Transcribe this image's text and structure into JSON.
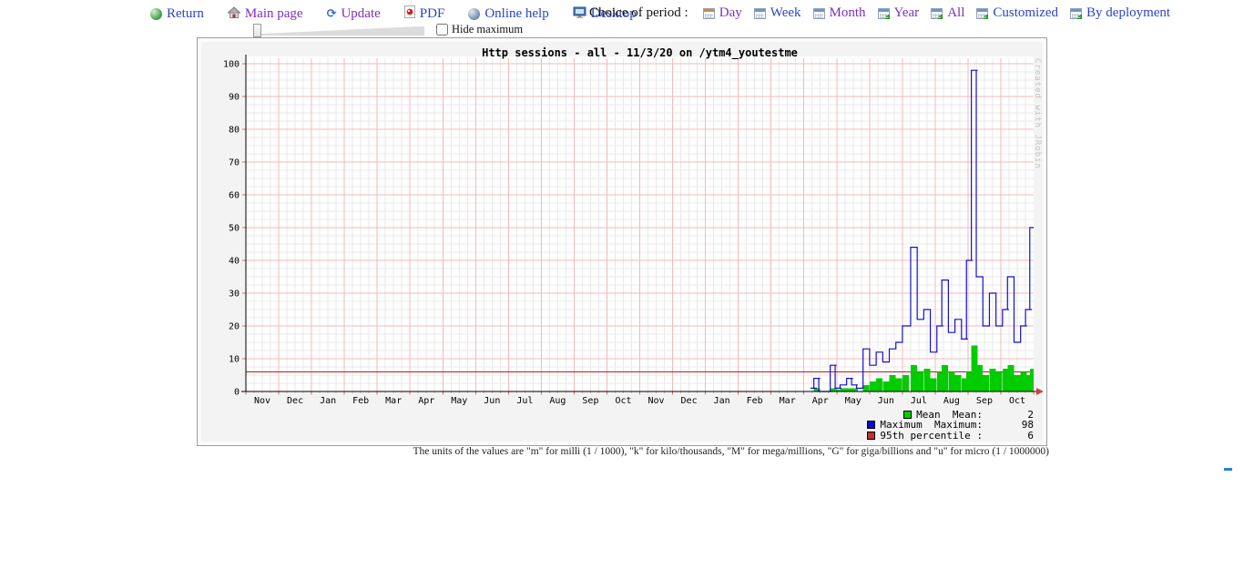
{
  "colors": {
    "link_blue": "#2a44c8",
    "link_visited_purple": "#7d2fc0",
    "grid_major": "#f3b9b9",
    "grid_minor": "#e9e9e9",
    "percentile_line": "#aa2222",
    "axis": "#000000",
    "axis_arrow": "#d04040",
    "mean_green": "#00cc00",
    "maximum_blue": "#1212cc"
  },
  "nav": {
    "items": [
      {
        "label": "Return",
        "icon": "return-icon",
        "visited": false
      },
      {
        "label": "Main page",
        "icon": "home-icon",
        "visited": true
      },
      {
        "label": "Update",
        "icon": "refresh-icon",
        "visited": true
      },
      {
        "label": "PDF",
        "icon": "pdf-icon",
        "visited": false
      },
      {
        "label": "Online help",
        "icon": "help-icon",
        "visited": false
      },
      {
        "label": "Desktop",
        "icon": "desktop-icon",
        "visited": false
      }
    ]
  },
  "period": {
    "label": "Choice of period :",
    "items": [
      {
        "label": "Day",
        "visited": true
      },
      {
        "label": "Week",
        "visited": false
      },
      {
        "label": "Month",
        "visited": true
      },
      {
        "label": "Year",
        "visited": true
      },
      {
        "label": "All",
        "visited": true
      },
      {
        "label": "Customized",
        "visited": false
      },
      {
        "label": "By deployment",
        "visited": false
      }
    ]
  },
  "controls": {
    "hide_maximum_label": "Hide maximum",
    "hide_maximum_checked": false
  },
  "graph": {
    "title": "Http sessions - all - 11/3/20 on /ytm4_youtestme",
    "watermark": "Created with JRobin",
    "legend": [
      {
        "label": "Mean  Mean:",
        "value": "2",
        "color": "#00cc00"
      },
      {
        "label": "Maximum  Maximum:",
        "value": "98",
        "color": "#0a0ad0"
      },
      {
        "label": "95th percentile :",
        "value": "6",
        "color": "#c03030"
      }
    ]
  },
  "footnote": "The units of the values are \"m\" for milli (1 / 1000), \"k\" for kilo/thousands, \"M\" for mega/millions, \"G\" for giga/billions and \"u\" for micro (1 / 1000000)",
  "chart_data": {
    "type": "line",
    "title": "Http sessions - all - 11/3/20 on /ytm4_youtestme",
    "xlabel": "",
    "ylabel": "",
    "ylim": [
      0,
      100
    ],
    "y_major_step": 10,
    "y_minor_step": 2.5,
    "x_minor_per_month": 4,
    "grid": true,
    "legend_position": "bottom-right",
    "months": [
      "Nov",
      "Dec",
      "Jan",
      "Feb",
      "Mar",
      "Apr",
      "May",
      "Jun",
      "Jul",
      "Aug",
      "Sep",
      "Oct",
      "Nov",
      "Dec",
      "Jan",
      "Feb",
      "Mar",
      "Apr",
      "May",
      "Jun",
      "Jul",
      "Aug",
      "Sep",
      "Oct"
    ],
    "percentile_95": 6,
    "summary": {
      "mean": 2,
      "maximum": 98,
      "percentile_95": 6
    },
    "series": [
      {
        "name": "Maximum",
        "type": "step",
        "color": "#1212cc",
        "points": [
          [
            17.3,
            1
          ],
          [
            17.4,
            4
          ],
          [
            17.55,
            0
          ],
          [
            17.9,
            8
          ],
          [
            18.05,
            1
          ],
          [
            18.2,
            2
          ],
          [
            18.4,
            4
          ],
          [
            18.55,
            2
          ],
          [
            18.7,
            1
          ],
          [
            18.9,
            13
          ],
          [
            19.1,
            8
          ],
          [
            19.3,
            12
          ],
          [
            19.5,
            9
          ],
          [
            19.7,
            13
          ],
          [
            19.9,
            15
          ],
          [
            20.1,
            20
          ],
          [
            20.35,
            44
          ],
          [
            20.55,
            22
          ],
          [
            20.75,
            25
          ],
          [
            20.95,
            12
          ],
          [
            21.15,
            20
          ],
          [
            21.3,
            34
          ],
          [
            21.5,
            18
          ],
          [
            21.7,
            22
          ],
          [
            21.9,
            16
          ],
          [
            22.05,
            40
          ],
          [
            22.2,
            98
          ],
          [
            22.35,
            35
          ],
          [
            22.55,
            20
          ],
          [
            22.75,
            30
          ],
          [
            22.95,
            20
          ],
          [
            23.15,
            25
          ],
          [
            23.3,
            35
          ],
          [
            23.5,
            15
          ],
          [
            23.7,
            20
          ],
          [
            23.85,
            25
          ],
          [
            23.98,
            50
          ]
        ]
      },
      {
        "name": "Mean",
        "type": "bar",
        "color": "#00cc00",
        "points": [
          [
            17.4,
            1
          ],
          [
            17.9,
            1
          ],
          [
            18.05,
            0.5
          ],
          [
            18.2,
            1
          ],
          [
            18.4,
            1
          ],
          [
            18.55,
            1
          ],
          [
            18.9,
            2
          ],
          [
            19.1,
            3
          ],
          [
            19.3,
            4
          ],
          [
            19.5,
            3
          ],
          [
            19.7,
            5
          ],
          [
            19.9,
            4
          ],
          [
            20.1,
            5
          ],
          [
            20.35,
            8
          ],
          [
            20.55,
            6
          ],
          [
            20.75,
            7
          ],
          [
            20.95,
            4
          ],
          [
            21.15,
            6
          ],
          [
            21.3,
            8
          ],
          [
            21.5,
            6
          ],
          [
            21.7,
            5
          ],
          [
            21.9,
            4
          ],
          [
            22.05,
            6
          ],
          [
            22.2,
            14
          ],
          [
            22.35,
            8
          ],
          [
            22.55,
            5
          ],
          [
            22.75,
            7
          ],
          [
            22.95,
            6
          ],
          [
            23.15,
            7
          ],
          [
            23.3,
            8
          ],
          [
            23.5,
            5
          ],
          [
            23.7,
            6
          ],
          [
            23.85,
            5
          ],
          [
            23.98,
            7
          ]
        ]
      }
    ]
  }
}
